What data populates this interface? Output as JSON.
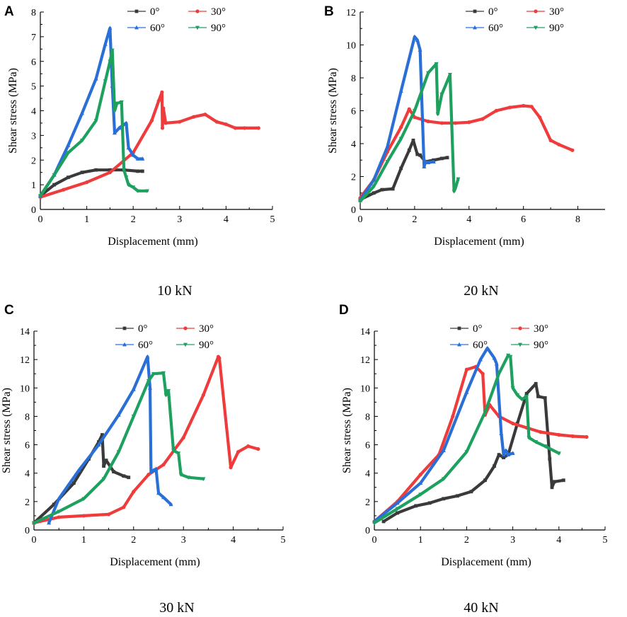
{
  "figure": {
    "series_colors": {
      "0°": "#3a3a3a",
      "30°": "#ef3b3b",
      "60°": "#2a6fd6",
      "90°": "#1ea05f"
    }
  },
  "chart_data": [
    {
      "type": "line",
      "panel": "A",
      "caption": "10 kN",
      "xlabel": "Displacement (mm)",
      "ylabel": "Shear stress (MPa)",
      "xlim": [
        0,
        5
      ],
      "ylim": [
        0,
        8
      ],
      "xticks": [
        0,
        1,
        2,
        3,
        4,
        5
      ],
      "yticks": [
        0,
        1,
        2,
        3,
        4,
        5,
        6,
        7,
        8
      ],
      "legend": [
        "0°",
        "30°",
        "60°",
        "90°"
      ],
      "series": [
        {
          "name": "0°",
          "x": [
            0,
            0.3,
            0.6,
            0.9,
            1.2,
            1.5,
            1.8,
            2.1,
            2.2
          ],
          "y": [
            0.55,
            1.0,
            1.3,
            1.5,
            1.6,
            1.6,
            1.6,
            1.55,
            1.55
          ]
        },
        {
          "name": "30°",
          "x": [
            0,
            0.5,
            1.0,
            1.5,
            2.0,
            2.4,
            2.55,
            2.62,
            2.63,
            2.65,
            2.7,
            3.0,
            3.3,
            3.55,
            3.8,
            4.0,
            4.2,
            4.4,
            4.7
          ],
          "y": [
            0.5,
            0.8,
            1.1,
            1.5,
            2.3,
            3.6,
            4.4,
            4.75,
            3.3,
            4.1,
            3.5,
            3.55,
            3.75,
            3.85,
            3.55,
            3.45,
            3.3,
            3.3,
            3.3
          ]
        },
        {
          "name": "60°",
          "x": [
            0,
            0.3,
            0.6,
            0.9,
            1.2,
            1.4,
            1.5,
            1.55,
            1.6,
            1.7,
            1.85,
            1.9,
            2.0,
            2.1,
            2.2
          ],
          "y": [
            0.55,
            1.4,
            2.6,
            3.9,
            5.3,
            6.7,
            7.35,
            5.0,
            3.1,
            3.3,
            3.5,
            2.5,
            2.2,
            2.05,
            2.05
          ]
        },
        {
          "name": "90°",
          "x": [
            0,
            0.3,
            0.6,
            0.9,
            1.2,
            1.4,
            1.5,
            1.55,
            1.6,
            1.65,
            1.75,
            1.8,
            1.85,
            1.9,
            2.0,
            2.1,
            2.3
          ],
          "y": [
            0.55,
            1.4,
            2.3,
            2.8,
            3.6,
            5.2,
            6.0,
            6.45,
            4.0,
            4.3,
            4.35,
            1.6,
            1.3,
            1.0,
            0.9,
            0.75,
            0.75
          ]
        }
      ]
    },
    {
      "type": "line",
      "panel": "B",
      "caption": "20 kN",
      "xlabel": "Displacement (mm)",
      "ylabel": "Shear stress (MPa)",
      "xlim": [
        0,
        9
      ],
      "ylim": [
        0,
        12
      ],
      "xticks": [
        0,
        2,
        4,
        6,
        8
      ],
      "yticks": [
        0,
        2,
        4,
        6,
        8,
        10,
        12
      ],
      "legend": [
        "0°",
        "30°",
        "60°",
        "90°"
      ],
      "series": [
        {
          "name": "0°",
          "x": [
            0,
            0.5,
            0.8,
            1.2,
            1.5,
            1.8,
            1.95,
            2.1,
            2.2,
            2.4,
            2.7,
            3.0,
            3.2
          ],
          "y": [
            0.6,
            1.0,
            1.2,
            1.25,
            2.5,
            3.6,
            4.2,
            3.35,
            3.3,
            2.9,
            3.0,
            3.1,
            3.15
          ]
        },
        {
          "name": "30°",
          "x": [
            0,
            0.5,
            1.0,
            1.5,
            1.8,
            2.0,
            2.5,
            3.0,
            3.5,
            4.0,
            4.5,
            5.0,
            5.5,
            6.0,
            6.3,
            6.6,
            7.0,
            7.3,
            7.8
          ],
          "y": [
            0.7,
            1.8,
            3.5,
            5.0,
            6.1,
            5.6,
            5.35,
            5.25,
            5.25,
            5.3,
            5.5,
            6.0,
            6.2,
            6.3,
            6.25,
            5.6,
            4.2,
            3.95,
            3.6
          ]
        },
        {
          "name": "60°",
          "x": [
            0,
            0.5,
            1.0,
            1.5,
            2.0,
            2.1,
            2.2,
            2.35,
            2.4,
            2.5,
            2.7
          ],
          "y": [
            0.55,
            1.8,
            3.8,
            7.2,
            10.5,
            10.3,
            9.7,
            2.6,
            2.9,
            2.85,
            2.9
          ]
        },
        {
          "name": "90°",
          "x": [
            0,
            0.5,
            1.0,
            1.5,
            2.0,
            2.5,
            2.8,
            2.85,
            3.0,
            3.3,
            3.45,
            3.5,
            3.6
          ],
          "y": [
            0.5,
            1.4,
            2.9,
            4.3,
            6.0,
            8.3,
            8.85,
            5.8,
            7.0,
            8.2,
            1.1,
            1.3,
            1.85
          ]
        }
      ]
    },
    {
      "type": "line",
      "panel": "C",
      "caption": "30 kN",
      "xlabel": "Displacement (mm)",
      "ylabel": "Shear stress (MPa)",
      "xlim": [
        0,
        5
      ],
      "ylim": [
        0,
        14
      ],
      "xticks": [
        0,
        1,
        2,
        3,
        4,
        5
      ],
      "yticks": [
        0,
        2,
        4,
        6,
        8,
        10,
        12,
        14
      ],
      "legend": [
        "0°",
        "30°",
        "60°",
        "90°"
      ],
      "series": [
        {
          "name": "0°",
          "x": [
            0,
            0.4,
            0.8,
            1.1,
            1.3,
            1.37,
            1.4,
            1.45,
            1.6,
            1.8,
            1.9
          ],
          "y": [
            0.5,
            1.8,
            3.3,
            5.0,
            6.2,
            6.7,
            4.5,
            4.9,
            4.1,
            3.8,
            3.7
          ]
        },
        {
          "name": "30°",
          "x": [
            0,
            0.5,
            1.0,
            1.5,
            1.8,
            2.0,
            2.3,
            2.6,
            3.0,
            3.4,
            3.7,
            3.72,
            3.95,
            4.1,
            4.3,
            4.5
          ],
          "y": [
            0.5,
            0.9,
            1.0,
            1.1,
            1.6,
            2.7,
            3.9,
            4.6,
            6.5,
            9.5,
            12.2,
            12.1,
            4.4,
            5.5,
            5.9,
            5.7
          ]
        },
        {
          "name": "60°",
          "x": [
            0.3,
            0.5,
            0.9,
            1.3,
            1.7,
            2.0,
            2.28,
            2.33,
            2.35,
            2.4,
            2.45,
            2.5,
            2.6,
            2.75
          ],
          "y": [
            0.5,
            2.2,
            4.2,
            6.0,
            8.1,
            9.9,
            12.2,
            10.0,
            4.1,
            4.2,
            4.3,
            2.6,
            2.3,
            1.8
          ]
        },
        {
          "name": "90°",
          "x": [
            0,
            0.5,
            1.0,
            1.4,
            1.7,
            2.0,
            2.3,
            2.4,
            2.6,
            2.65,
            2.7,
            2.8,
            2.9,
            2.95,
            3.1,
            3.4
          ],
          "y": [
            0.5,
            1.3,
            2.2,
            3.6,
            5.5,
            8.0,
            10.5,
            11.0,
            11.05,
            9.5,
            9.8,
            5.6,
            5.4,
            3.9,
            3.7,
            3.6
          ]
        }
      ]
    },
    {
      "type": "line",
      "panel": "D",
      "caption": "40 kN",
      "xlabel": "Displacement (mm)",
      "ylabel": "Shear stress (MPa)",
      "xlim": [
        0,
        5
      ],
      "ylim": [
        0,
        14
      ],
      "xticks": [
        0,
        1,
        2,
        3,
        4,
        5
      ],
      "yticks": [
        0,
        2,
        4,
        6,
        8,
        10,
        12,
        14
      ],
      "legend": [
        "0°",
        "30°",
        "60°",
        "90°"
      ],
      "series": [
        {
          "name": "0°",
          "x": [
            0.2,
            0.5,
            0.9,
            1.2,
            1.5,
            1.8,
            2.1,
            2.4,
            2.6,
            2.7,
            2.8,
            2.9,
            3.1,
            3.3,
            3.5,
            3.55,
            3.7,
            3.8,
            3.85,
            3.9,
            4.1
          ],
          "y": [
            0.6,
            1.2,
            1.7,
            1.9,
            2.2,
            2.4,
            2.7,
            3.5,
            4.5,
            5.3,
            5.1,
            5.3,
            7.5,
            9.6,
            10.3,
            9.4,
            9.3,
            5.0,
            3.0,
            3.4,
            3.5
          ]
        },
        {
          "name": "30°",
          "x": [
            0,
            0.5,
            1.0,
            1.4,
            1.7,
            2.0,
            2.2,
            2.35,
            2.4,
            2.5,
            2.7,
            3.0,
            3.3,
            3.6,
            4.0,
            4.3,
            4.6
          ],
          "y": [
            0.6,
            2.0,
            3.9,
            5.3,
            8.0,
            11.3,
            11.5,
            11.0,
            8.1,
            8.8,
            8.0,
            7.5,
            7.2,
            6.9,
            6.7,
            6.6,
            6.55
          ]
        },
        {
          "name": "60°",
          "x": [
            0,
            0.5,
            1.0,
            1.5,
            2.0,
            2.3,
            2.45,
            2.6,
            2.65,
            2.75,
            2.8,
            2.85,
            2.9,
            3.0
          ],
          "y": [
            0.6,
            1.9,
            3.3,
            5.6,
            9.7,
            12.0,
            12.8,
            12.1,
            11.7,
            6.8,
            5.3,
            5.6,
            5.3,
            5.4
          ]
        },
        {
          "name": "90°",
          "x": [
            0,
            0.5,
            1.0,
            1.5,
            2.0,
            2.4,
            2.7,
            2.9,
            2.95,
            3.0,
            3.1,
            3.2,
            3.3,
            3.35,
            3.5,
            3.7,
            4.0
          ],
          "y": [
            0.5,
            1.5,
            2.5,
            3.6,
            5.5,
            8.3,
            11.0,
            12.3,
            12.2,
            10.0,
            9.5,
            9.2,
            9.4,
            6.5,
            6.2,
            5.9,
            5.4
          ]
        }
      ]
    }
  ]
}
